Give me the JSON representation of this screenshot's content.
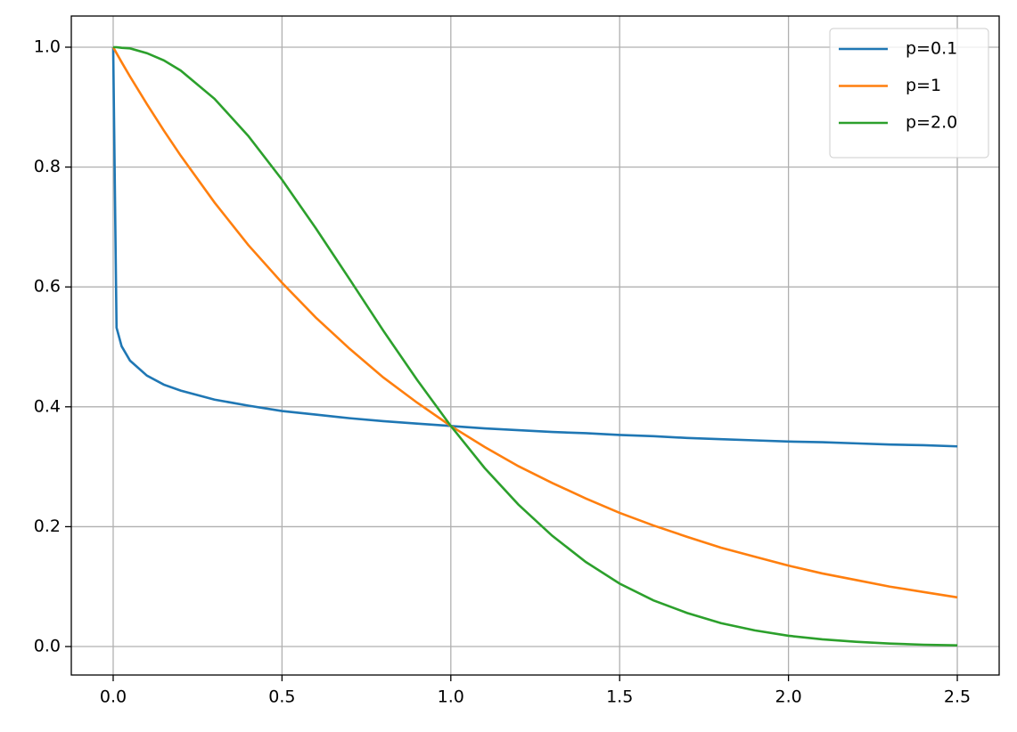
{
  "chart_data": {
    "type": "line",
    "x": [
      0,
      0.01,
      0.025,
      0.05,
      0.1,
      0.15,
      0.2,
      0.3,
      0.4,
      0.5,
      0.6,
      0.7,
      0.8,
      0.9,
      1.0,
      1.1,
      1.2,
      1.3,
      1.4,
      1.5,
      1.6,
      1.7,
      1.8,
      1.9,
      2.0,
      2.1,
      2.2,
      2.3,
      2.4,
      2.5
    ],
    "series": [
      {
        "name": "p=0.1",
        "color": "#1f77b4",
        "values": [
          1,
          0.532,
          0.501,
          0.477,
          0.452,
          0.437,
          0.427,
          0.412,
          0.402,
          0.393,
          0.387,
          0.381,
          0.376,
          0.372,
          0.368,
          0.364,
          0.361,
          0.358,
          0.356,
          0.353,
          0.351,
          0.348,
          0.346,
          0.344,
          0.342,
          0.341,
          0.339,
          0.337,
          0.336,
          0.334
        ]
      },
      {
        "name": "p=1",
        "color": "#ff7f0e",
        "values": [
          1,
          0.99,
          0.975,
          0.951,
          0.905,
          0.861,
          0.819,
          0.741,
          0.67,
          0.607,
          0.549,
          0.497,
          0.449,
          0.407,
          0.368,
          0.333,
          0.301,
          0.273,
          0.247,
          0.223,
          0.202,
          0.183,
          0.165,
          0.15,
          0.135,
          0.122,
          0.111,
          0.1,
          0.091,
          0.082
        ]
      },
      {
        "name": "p=2.0",
        "color": "#2ca02c",
        "values": [
          1,
          1.0,
          0.999,
          0.998,
          0.99,
          0.978,
          0.961,
          0.914,
          0.852,
          0.779,
          0.698,
          0.613,
          0.527,
          0.445,
          0.368,
          0.298,
          0.237,
          0.185,
          0.141,
          0.105,
          0.077,
          0.056,
          0.039,
          0.027,
          0.018,
          0.012,
          0.008,
          0.005,
          0.003,
          0.002
        ]
      }
    ],
    "xlim": [
      -0.124,
      2.624
    ],
    "ylim": [
      -0.0475,
      1.052
    ],
    "xticks": [
      {
        "value": 0,
        "label": "0.0"
      },
      0.5,
      {
        "value": 1,
        "label": "1.0"
      },
      1.5,
      {
        "value": 2,
        "label": "2.0"
      },
      2.5
    ],
    "yticks": [
      {
        "value": 0,
        "label": "0.0"
      },
      0.2,
      0.4,
      0.6,
      0.8,
      {
        "value": 1,
        "label": "1.0"
      }
    ],
    "grid": true,
    "legend": "upper-right"
  }
}
